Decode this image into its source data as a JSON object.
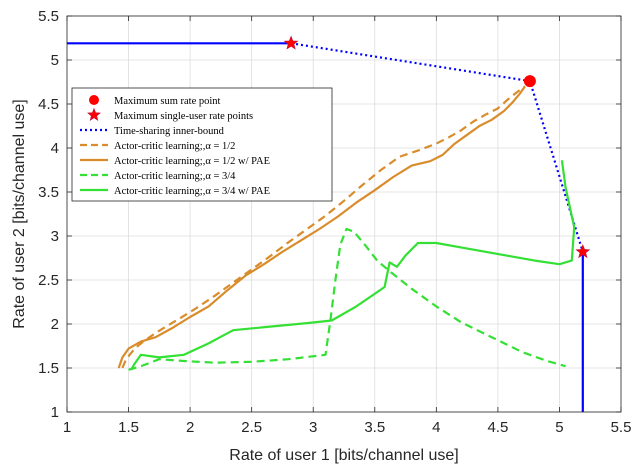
{
  "chart_data": {
    "type": "line",
    "title": "",
    "xlabel": "Rate of user 1 [bits/channel use]",
    "ylabel": "Rate of user 2 [bits/channel use]",
    "xlim": [
      1,
      5.5
    ],
    "ylim": [
      1,
      5.5
    ],
    "xticks": [
      1,
      1.5,
      2,
      2.5,
      3,
      3.5,
      4,
      4.5,
      5,
      5.5
    ],
    "yticks": [
      1,
      1.5,
      2,
      2.5,
      3,
      3.5,
      4,
      4.5,
      5,
      5.5
    ],
    "xtick_labels": [
      "1",
      "1.5",
      "2",
      "2.5",
      "3",
      "3.5",
      "4",
      "4.5",
      "5",
      "5.5"
    ],
    "ytick_labels": [
      "1",
      "1.5",
      "2",
      "2.5",
      "3",
      "3.5",
      "4",
      "4.5",
      "5",
      "5.5"
    ],
    "grid": true,
    "legend_position": "upper-left",
    "colors": {
      "boundary": "#0000ff",
      "timesharing": "#0000ff",
      "sum_rate_point": "#ff0000",
      "single_user_points": "#ff0000",
      "ac_half": "#d98c2b",
      "ac_half_pae": "#d98c2b",
      "ac_three_quarters": "#33e033",
      "ac_three_quarters_pae": "#33e033"
    },
    "boundary_segments": [
      {
        "x": [
          1.0,
          2.82
        ],
        "y": [
          5.19,
          5.19
        ]
      },
      {
        "x": [
          5.19,
          5.19
        ],
        "y": [
          2.82,
          1.0
        ]
      }
    ],
    "series": [
      {
        "name": "Maximum sum rate point",
        "style": "marker-circle",
        "points": [
          [
            4.76,
            4.76
          ]
        ]
      },
      {
        "name": "Maximum single-user rate points",
        "style": "marker-star",
        "points": [
          [
            2.82,
            5.19
          ],
          [
            5.19,
            2.82
          ]
        ]
      },
      {
        "name": "Time-sharing inner-bound",
        "style": "dotted",
        "x": [
          2.82,
          4.76,
          5.19
        ],
        "y": [
          5.19,
          4.76,
          2.82
        ]
      },
      {
        "name": "Actor-critic learning;,α = 1/2",
        "style": "dashed",
        "x": [
          1.45,
          1.48,
          1.55,
          1.62,
          1.7,
          1.78,
          1.9,
          2.05,
          2.2,
          2.35,
          2.5,
          2.65,
          2.8,
          2.95,
          3.1,
          3.25,
          3.4,
          3.55,
          3.7,
          3.85,
          4.0,
          4.1,
          4.2,
          4.3,
          4.4,
          4.5,
          4.58,
          4.65,
          4.72
        ],
        "y": [
          1.5,
          1.6,
          1.72,
          1.8,
          1.88,
          1.95,
          2.05,
          2.18,
          2.32,
          2.47,
          2.62,
          2.77,
          2.93,
          3.08,
          3.23,
          3.4,
          3.58,
          3.75,
          3.9,
          3.97,
          4.05,
          4.12,
          4.2,
          4.3,
          4.38,
          4.45,
          4.55,
          4.63,
          4.7
        ]
      },
      {
        "name": "Actor-critic learning;,α = 1/2 w/ PAE",
        "style": "solid",
        "x": [
          1.42,
          1.45,
          1.5,
          1.6,
          1.72,
          1.85,
          2.0,
          2.15,
          2.3,
          2.45,
          2.6,
          2.75,
          2.9,
          3.05,
          3.2,
          3.35,
          3.5,
          3.65,
          3.8,
          3.95,
          4.05,
          4.15,
          4.25,
          4.35,
          4.45,
          4.55,
          4.62,
          4.68,
          4.72
        ],
        "y": [
          1.5,
          1.62,
          1.72,
          1.8,
          1.85,
          1.95,
          2.08,
          2.2,
          2.38,
          2.55,
          2.68,
          2.82,
          2.95,
          3.08,
          3.22,
          3.38,
          3.52,
          3.67,
          3.8,
          3.85,
          3.92,
          4.05,
          4.15,
          4.25,
          4.32,
          4.42,
          4.52,
          4.62,
          4.7
        ]
      },
      {
        "name": "Actor-critic learning;,α = 3/4",
        "style": "dashed",
        "x": [
          1.5,
          1.6,
          1.75,
          1.95,
          2.2,
          2.5,
          2.8,
          3.1,
          3.14,
          3.18,
          3.22,
          3.27,
          3.33,
          3.42,
          3.52,
          3.62,
          3.8,
          4.0,
          4.2,
          4.45,
          4.7,
          4.9,
          5.05
        ],
        "y": [
          1.48,
          1.52,
          1.6,
          1.58,
          1.56,
          1.57,
          1.6,
          1.65,
          2.05,
          2.5,
          2.9,
          3.08,
          3.05,
          2.9,
          2.72,
          2.6,
          2.4,
          2.2,
          2.02,
          1.85,
          1.68,
          1.58,
          1.52
        ]
      },
      {
        "name": "Actor-critic learning;,α = 3/4 w/ PAE",
        "style": "solid",
        "x": [
          1.52,
          1.55,
          1.6,
          1.75,
          1.95,
          2.15,
          2.35,
          2.65,
          2.95,
          3.15,
          3.35,
          3.58,
          3.62,
          3.68,
          3.75,
          3.85,
          4.0,
          4.2,
          4.4,
          4.6,
          4.8,
          5.0,
          5.1,
          5.12,
          5.05,
          5.02
        ],
        "y": [
          1.48,
          1.55,
          1.65,
          1.62,
          1.65,
          1.78,
          1.93,
          1.97,
          2.01,
          2.04,
          2.2,
          2.42,
          2.7,
          2.65,
          2.78,
          2.92,
          2.92,
          2.87,
          2.82,
          2.77,
          2.72,
          2.68,
          2.72,
          3.1,
          3.55,
          3.86
        ]
      }
    ]
  }
}
